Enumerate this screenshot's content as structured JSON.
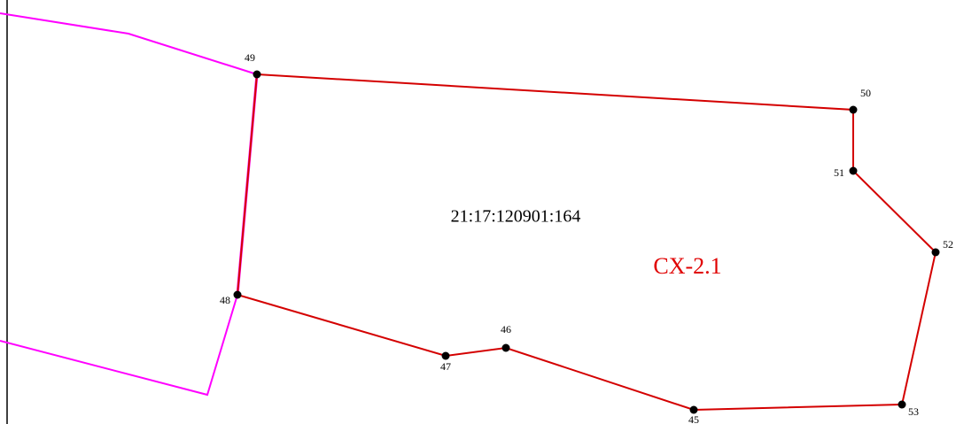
{
  "parcel": {
    "cadastral_number": "21:17:120901:164",
    "zone": "CX-2.1"
  },
  "points": [
    "49",
    "50",
    "51",
    "52",
    "53",
    "45",
    "46",
    "47",
    "48"
  ]
}
